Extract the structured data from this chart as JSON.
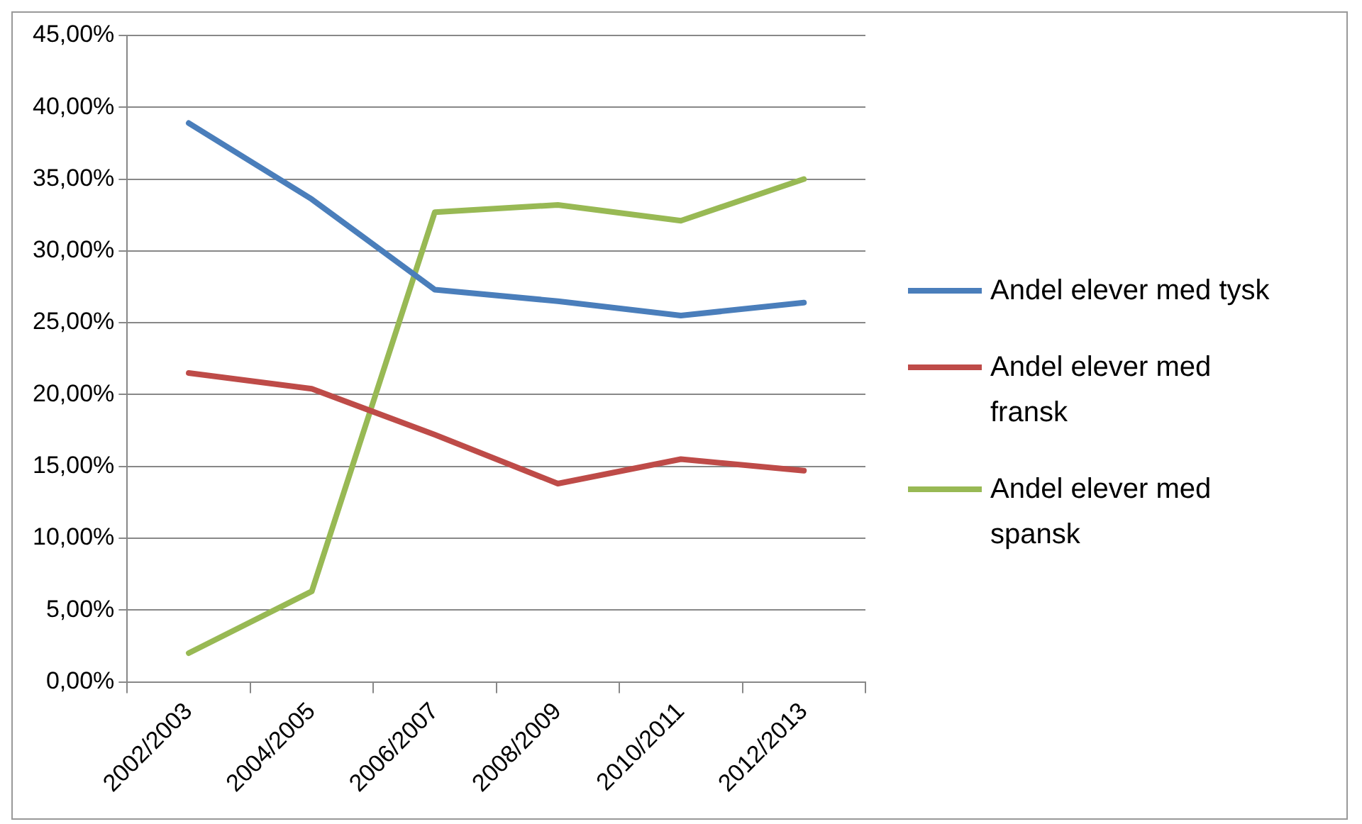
{
  "chart_data": {
    "type": "line",
    "categories": [
      "2002/2003",
      "2004/2005",
      "2006/2007",
      "2008/2009",
      "2010/2011",
      "2012/2013"
    ],
    "series": [
      {
        "name": "Andel elever med tysk",
        "color": "#4a7ebb",
        "values": [
          38.9,
          33.6,
          27.3,
          26.5,
          25.5,
          26.4
        ]
      },
      {
        "name": "Andel elever med fransk",
        "color": "#be4b48",
        "values": [
          21.5,
          20.4,
          17.2,
          13.8,
          15.5,
          14.7
        ]
      },
      {
        "name": "Andel elever med spansk",
        "color": "#98b954",
        "values": [
          2.0,
          6.3,
          32.7,
          33.2,
          32.1,
          35.0
        ]
      }
    ],
    "ylim": [
      0,
      45
    ],
    "yticks": [
      {
        "value": 0,
        "label": "0,00%"
      },
      {
        "value": 5,
        "label": "5,00%"
      },
      {
        "value": 10,
        "label": "10,00%"
      },
      {
        "value": 15,
        "label": "15,00%"
      },
      {
        "value": 20,
        "label": "20,00%"
      },
      {
        "value": 25,
        "label": "25,00%"
      },
      {
        "value": 30,
        "label": "30,00%"
      },
      {
        "value": 35,
        "label": "35,00%"
      },
      {
        "value": 40,
        "label": "40,00%"
      },
      {
        "value": 45,
        "label": "45,00%"
      }
    ],
    "grid": "y",
    "legend": "right",
    "marker": "none",
    "line_style": "solid"
  }
}
